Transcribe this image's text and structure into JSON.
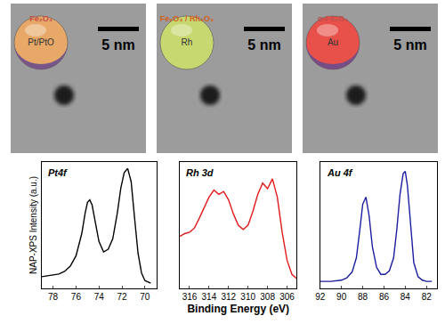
{
  "tem_images": [
    {
      "shell": "Fe₂O₃",
      "core": "Pt/PtO",
      "scale_bar": "5 nm"
    },
    {
      "shell": "Fe₂O₃ / Rh₂O₃",
      "core": "Rh",
      "scale_bar": "5 nm"
    },
    {
      "shell": "α-Fe₂O₃",
      "core": "Au",
      "scale_bar": "5 nm"
    }
  ],
  "chart_data": [
    {
      "type": "line",
      "label": "Pt4f",
      "y_label": "NAP-XPS Intensity (a.u.)",
      "color": "#000000",
      "x": [
        79,
        78,
        77.5,
        77,
        76.5,
        76,
        75.5,
        75.2,
        75,
        74.8,
        74.6,
        74.3,
        74,
        73.6,
        73.2,
        72.8,
        72.4,
        72.1,
        71.8,
        71.5,
        71.2,
        70.9,
        70.6,
        70.3,
        70,
        69.5
      ],
      "values": [
        0.17,
        0.18,
        0.19,
        0.21,
        0.25,
        0.33,
        0.5,
        0.66,
        0.74,
        0.76,
        0.72,
        0.58,
        0.44,
        0.36,
        0.38,
        0.46,
        0.66,
        0.85,
        0.97,
        1.0,
        0.9,
        0.62,
        0.35,
        0.2,
        0.14,
        0.12
      ],
      "xlim": [
        79,
        69
      ],
      "xticks": [
        78,
        76,
        74,
        72,
        70
      ],
      "ylim": [
        0.08,
        1.05
      ],
      "tick_labels": "x"
    },
    {
      "type": "line",
      "label": "Rh 3d",
      "x_label": "Binding Energy (eV)",
      "color": "#e31a1c",
      "x": [
        317,
        316.5,
        316,
        315.5,
        315,
        314.5,
        314,
        313.5,
        313,
        312.5,
        312,
        311.5,
        311,
        310.5,
        310,
        309.5,
        309,
        308.5,
        308,
        307.5,
        307,
        306.5,
        306,
        305.5,
        305
      ],
      "values": [
        0.42,
        0.44,
        0.45,
        0.48,
        0.55,
        0.63,
        0.7,
        0.75,
        0.72,
        0.74,
        0.68,
        0.58,
        0.5,
        0.47,
        0.5,
        0.6,
        0.72,
        0.8,
        0.76,
        0.83,
        0.7,
        0.45,
        0.25,
        0.15,
        0.12
      ],
      "xlim": [
        317,
        305
      ],
      "xticks": [
        316,
        314,
        312,
        310,
        308,
        306
      ],
      "ylim": [
        0.05,
        0.95
      ],
      "tick_labels": "x"
    },
    {
      "type": "line",
      "label": "Au 4f",
      "color": "#1c1ca0",
      "x": [
        92,
        91,
        90,
        89.5,
        89,
        88.6,
        88.3,
        88,
        87.7,
        87.4,
        87.1,
        86.7,
        86.3,
        85.9,
        85.5,
        85.1,
        84.8,
        84.5,
        84.2,
        84,
        83.8,
        83.5,
        83.2,
        82.8,
        82.4,
        82,
        81.5
      ],
      "values": [
        0.06,
        0.06,
        0.07,
        0.09,
        0.14,
        0.26,
        0.48,
        0.72,
        0.78,
        0.62,
        0.36,
        0.18,
        0.12,
        0.12,
        0.15,
        0.26,
        0.5,
        0.8,
        0.98,
        1.0,
        0.88,
        0.52,
        0.22,
        0.1,
        0.07,
        0.06,
        0.06
      ],
      "xlim": [
        92,
        81
      ],
      "xticks": [
        92,
        90,
        88,
        86,
        84,
        82
      ],
      "ylim": [
        0,
        1.08
      ],
      "tick_labels": "x"
    }
  ]
}
